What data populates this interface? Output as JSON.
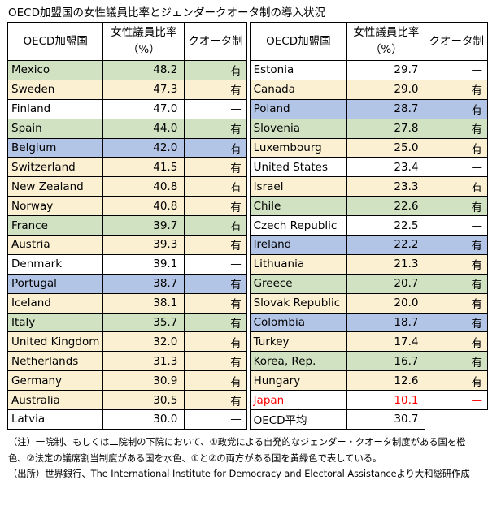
{
  "title": "OECD加盟国の女性議員比率とジェンダークオータ制の導入状況",
  "colors": {
    "orange": "#fcf0d3",
    "blue": "#b3c5e6",
    "green": "#d0e2c1",
    "none": "#ffffff",
    "japan_text": "#ff0000"
  },
  "chart_data": {
    "type": "table",
    "columns": [
      "OECD加盟国",
      "女性議員比率\n（%）",
      "クオータ制"
    ],
    "legend_meaning": {
      "orange": "一院制、もしくは二院制の下院において、①政党による自発的なジェンダー・クオータ制度がある国",
      "blue": "②法定の議席割当制度がある国",
      "green": "①と②の両方がある国"
    },
    "left": [
      {
        "country": "Mexico",
        "value": "48.2",
        "quota": "有",
        "color": "green"
      },
      {
        "country": "Sweden",
        "value": "47.3",
        "quota": "有",
        "color": "orange"
      },
      {
        "country": "Finland",
        "value": "47.0",
        "quota": "—",
        "color": "none"
      },
      {
        "country": "Spain",
        "value": "44.0",
        "quota": "有",
        "color": "green"
      },
      {
        "country": "Belgium",
        "value": "42.0",
        "quota": "有",
        "color": "blue"
      },
      {
        "country": "Switzerland",
        "value": "41.5",
        "quota": "有",
        "color": "orange"
      },
      {
        "country": "New Zealand",
        "value": "40.8",
        "quota": "有",
        "color": "orange"
      },
      {
        "country": "Norway",
        "value": "40.8",
        "quota": "有",
        "color": "orange"
      },
      {
        "country": "France",
        "value": "39.7",
        "quota": "有",
        "color": "green"
      },
      {
        "country": "Austria",
        "value": "39.3",
        "quota": "有",
        "color": "orange"
      },
      {
        "country": "Denmark",
        "value": "39.1",
        "quota": "—",
        "color": "none"
      },
      {
        "country": "Portugal",
        "value": "38.7",
        "quota": "有",
        "color": "blue"
      },
      {
        "country": "Iceland",
        "value": "38.1",
        "quota": "有",
        "color": "orange"
      },
      {
        "country": "Italy",
        "value": "35.7",
        "quota": "有",
        "color": "green"
      },
      {
        "country": "United Kingdom",
        "value": "32.0",
        "quota": "有",
        "color": "orange"
      },
      {
        "country": "Netherlands",
        "value": "31.3",
        "quota": "有",
        "color": "orange"
      },
      {
        "country": "Germany",
        "value": "30.9",
        "quota": "有",
        "color": "orange"
      },
      {
        "country": "Australia",
        "value": "30.5",
        "quota": "有",
        "color": "orange"
      },
      {
        "country": "Latvia",
        "value": "30.0",
        "quota": "—",
        "color": "none"
      }
    ],
    "right": [
      {
        "country": "Estonia",
        "value": "29.7",
        "quota": "—",
        "color": "none"
      },
      {
        "country": "Canada",
        "value": "29.0",
        "quota": "有",
        "color": "orange"
      },
      {
        "country": "Poland",
        "value": "28.7",
        "quota": "有",
        "color": "blue"
      },
      {
        "country": "Slovenia",
        "value": "27.8",
        "quota": "有",
        "color": "green"
      },
      {
        "country": "Luxembourg",
        "value": "25.0",
        "quota": "有",
        "color": "orange"
      },
      {
        "country": "United States",
        "value": "23.4",
        "quota": "—",
        "color": "none"
      },
      {
        "country": "Israel",
        "value": "23.3",
        "quota": "有",
        "color": "orange"
      },
      {
        "country": "Chile",
        "value": "22.6",
        "quota": "有",
        "color": "green"
      },
      {
        "country": "Czech Republic",
        "value": "22.5",
        "quota": "—",
        "color": "none"
      },
      {
        "country": "Ireland",
        "value": "22.2",
        "quota": "有",
        "color": "blue"
      },
      {
        "country": "Lithuania",
        "value": "21.3",
        "quota": "有",
        "color": "orange"
      },
      {
        "country": "Greece",
        "value": "20.7",
        "quota": "有",
        "color": "green"
      },
      {
        "country": "Slovak Republic",
        "value": "20.0",
        "quota": "有",
        "color": "orange"
      },
      {
        "country": "Colombia",
        "value": "18.7",
        "quota": "有",
        "color": "blue"
      },
      {
        "country": "Turkey",
        "value": "17.4",
        "quota": "有",
        "color": "orange"
      },
      {
        "country": "Korea, Rep.",
        "value": "16.7",
        "quota": "有",
        "color": "green"
      },
      {
        "country": "Hungary",
        "value": "12.6",
        "quota": "有",
        "color": "orange"
      },
      {
        "country": "Japan",
        "value": "10.1",
        "quota": "—",
        "color": "none",
        "highlight": true
      },
      {
        "country": "OECD平均",
        "value": "30.7",
        "quota": "",
        "color": "none",
        "average": true
      }
    ]
  },
  "notes": [
    "（注）一院制、もしくは二院制の下院において、①政党による自発的なジェンダー・クオータ制度がある国を橙色、②法定の議席割当制度がある国を水色、①と②の両方がある国を黄緑色で表している。",
    "（出所）世界銀行、The International Institute for Democracy and Electoral Assistanceより大和総研作成"
  ]
}
